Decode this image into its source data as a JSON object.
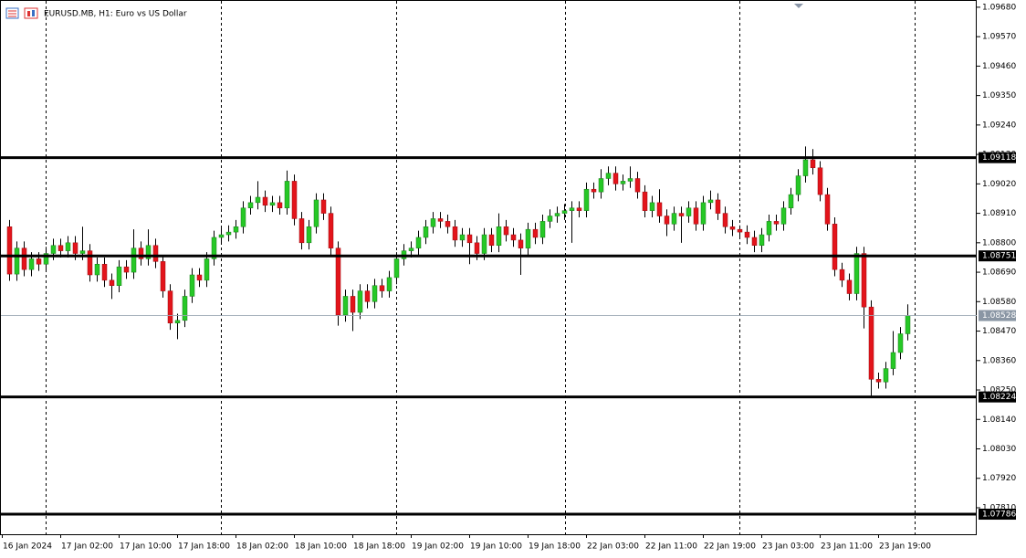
{
  "chart_data": {
    "type": "candlestick",
    "title": "EURUSD.MB, H1:  Euro vs US Dollar",
    "up_color": "#26c826",
    "down_color": "#e3141b",
    "ylim": [
      1.07711,
      1.09707
    ],
    "yticks": [
      {
        "value": 1.0968,
        "label": "1.09680"
      },
      {
        "value": 1.0957,
        "label": "1.09570"
      },
      {
        "value": 1.0946,
        "label": "1.09460"
      },
      {
        "value": 1.0935,
        "label": "1.09350"
      },
      {
        "value": 1.0924,
        "label": "1.09240"
      },
      {
        "value": 1.0913,
        "label": "1.09130"
      },
      {
        "value": 1.0902,
        "label": "1.09020"
      },
      {
        "value": 1.0891,
        "label": "1.08910"
      },
      {
        "value": 1.088,
        "label": "1.08800"
      },
      {
        "value": 1.0869,
        "label": "1.08690"
      },
      {
        "value": 1.0858,
        "label": "1.08580"
      },
      {
        "value": 1.0847,
        "label": "1.08470"
      },
      {
        "value": 1.0836,
        "label": "1.08360"
      },
      {
        "value": 1.0825,
        "label": "1.08250"
      },
      {
        "value": 1.0814,
        "label": "1.08140"
      },
      {
        "value": 1.0803,
        "label": "1.08030"
      },
      {
        "value": 1.0792,
        "label": "1.07920"
      },
      {
        "value": 1.0781,
        "label": "1.07810"
      }
    ],
    "x_labels": [
      "16 Jan 2024",
      "17 Jan 02:00",
      "17 Jan 10:00",
      "17 Jan 18:00",
      "18 Jan 02:00",
      "18 Jan 10:00",
      "18 Jan 18:00",
      "19 Jan 02:00",
      "19 Jan 10:00",
      "19 Jan 18:00",
      "22 Jan 03:00",
      "22 Jan 11:00",
      "22 Jan 19:00",
      "23 Jan 03:00",
      "23 Jan 11:00",
      "23 Jan 19:00"
    ],
    "levels": [
      1.09118,
      1.08751,
      1.08224,
      1.07786
    ],
    "current_price": 1.08528,
    "open": [
      1.0886,
      1.08683,
      1.0878,
      1.087,
      1.0874,
      1.0872,
      1.0876,
      1.0879,
      1.0877,
      1.088,
      1.0876,
      1.0877,
      1.0868,
      1.0872,
      1.0866,
      1.0864,
      1.0871,
      1.0869,
      1.0878,
      1.0874,
      1.0879,
      1.0873,
      1.0862,
      1.085,
      1.0851,
      1.086,
      1.0868,
      1.0866,
      1.0874,
      1.0882,
      1.0883,
      1.0884,
      1.0886,
      1.0893,
      1.0895,
      1.0897,
      1.0894,
      1.0895,
      1.0893,
      1.0903,
      1.0889,
      1.088,
      1.0886,
      1.0896,
      1.0891,
      1.0878,
      1.0853,
      1.086,
      1.0854,
      1.0862,
      1.0858,
      1.0864,
      1.0862,
      1.0867,
      1.0874,
      1.0877,
      1.0878,
      1.0882,
      1.0886,
      1.0889,
      1.0888,
      1.0886,
      1.0881,
      1.0883,
      1.088,
      1.0876,
      1.0883,
      1.0879,
      1.0886,
      1.0883,
      1.0881,
      1.0878,
      1.0885,
      1.0882,
      1.0888,
      1.089,
      1.0891,
      1.0892,
      1.0893,
      1.0892,
      1.09,
      1.0899,
      1.0904,
      1.0906,
      1.0902,
      1.0903,
      1.0904,
      1.0899,
      1.0892,
      1.0895,
      1.089,
      1.0887,
      1.0891,
      1.089,
      1.0893,
      1.0887,
      1.0895,
      1.0896,
      1.0891,
      1.0886,
      1.0885,
      1.0884,
      1.0882,
      1.0879,
      1.0883,
      1.0888,
      1.0887,
      1.0893,
      1.0898,
      1.0905,
      1.0911,
      1.0908,
      1.0898,
      1.0887,
      1.087,
      1.0866,
      1.0861,
      1.0876,
      1.0856,
      1.0829,
      1.0828,
      1.0833,
      1.0839,
      1.0846
    ],
    "high": [
      1.08885,
      1.08805,
      1.08805,
      1.08765,
      1.08765,
      1.08785,
      1.08815,
      1.08815,
      1.08825,
      1.08825,
      1.0886,
      1.08795,
      1.08745,
      1.08745,
      1.08685,
      1.08735,
      1.08735,
      1.0885,
      1.08805,
      1.0885,
      1.08815,
      1.08755,
      1.08645,
      1.08535,
      1.08625,
      1.08705,
      1.08705,
      1.08765,
      1.08845,
      1.08855,
      1.08865,
      1.08885,
      1.08955,
      1.08975,
      1.0903,
      1.08995,
      1.08975,
      1.08975,
      1.0907,
      1.09055,
      1.08915,
      1.08885,
      1.08985,
      1.08985,
      1.08935,
      1.08805,
      1.08625,
      1.08625,
      1.08645,
      1.08645,
      1.08665,
      1.08665,
      1.08695,
      1.08765,
      1.08795,
      1.08805,
      1.08845,
      1.08885,
      1.08915,
      1.08915,
      1.08905,
      1.08885,
      1.08855,
      1.08855,
      1.08825,
      1.08855,
      1.08855,
      1.0891,
      1.08885,
      1.08855,
      1.08835,
      1.08875,
      1.08875,
      1.08905,
      1.08925,
      1.08935,
      1.08945,
      1.08955,
      1.08955,
      1.09025,
      1.09025,
      1.09075,
      1.09085,
      1.09085,
      1.09055,
      1.09085,
      1.09065,
      1.09015,
      1.08975,
      1.09,
      1.08925,
      1.08935,
      1.08935,
      1.08955,
      1.08955,
      1.08975,
      1.08995,
      1.08985,
      1.08935,
      1.08885,
      1.08865,
      1.08865,
      1.08845,
      1.08855,
      1.08905,
      1.08905,
      1.08955,
      1.09005,
      1.09075,
      1.0916,
      1.0915,
      1.09105,
      1.09005,
      1.08895,
      1.08725,
      1.08685,
      1.08785,
      1.08785,
      1.08585,
      1.08315,
      1.08355,
      1.0847,
      1.08485,
      1.0857
    ],
    "low": [
      1.08658,
      1.08658,
      1.08675,
      1.08675,
      1.08695,
      1.08695,
      1.08735,
      1.08745,
      1.08745,
      1.08735,
      1.08735,
      1.08655,
      1.08655,
      1.08635,
      1.0859,
      1.08615,
      1.08665,
      1.08665,
      1.08715,
      1.08715,
      1.08705,
      1.08595,
      1.08475,
      1.0844,
      1.08485,
      1.08575,
      1.08635,
      1.08635,
      1.08715,
      1.08795,
      1.08805,
      1.08815,
      1.08835,
      1.08905,
      1.08925,
      1.08915,
      1.08915,
      1.08905,
      1.08905,
      1.08865,
      1.08775,
      1.08775,
      1.08835,
      1.08885,
      1.08755,
      1.0849,
      1.08505,
      1.0847,
      1.08515,
      1.08555,
      1.08555,
      1.08595,
      1.08595,
      1.08645,
      1.08715,
      1.08745,
      1.08755,
      1.08795,
      1.08835,
      1.08855,
      1.08835,
      1.08785,
      1.08785,
      1.0872,
      1.08735,
      1.08735,
      1.08765,
      1.08765,
      1.08805,
      1.08785,
      1.0868,
      1.08755,
      1.08795,
      1.08795,
      1.08855,
      1.08875,
      1.08885,
      1.088,
      1.08895,
      1.08895,
      1.08965,
      1.08965,
      1.09015,
      1.08995,
      1.08995,
      1.09005,
      1.08965,
      1.08895,
      1.08895,
      1.08875,
      1.08825,
      1.08845,
      1.088,
      1.08875,
      1.08845,
      1.08845,
      1.08925,
      1.08885,
      1.08835,
      1.08825,
      1.08815,
      1.08795,
      1.08765,
      1.08765,
      1.08805,
      1.08845,
      1.08845,
      1.08905,
      1.08955,
      1.09025,
      1.09055,
      1.08955,
      1.08845,
      1.08675,
      1.08635,
      1.08585,
      1.08585,
      1.0848,
      1.0822,
      1.08255,
      1.08255,
      1.08305,
      1.08365,
      1.08435
    ],
    "close": [
      1.08683,
      1.0878,
      1.087,
      1.0874,
      1.0872,
      1.0876,
      1.0879,
      1.0877,
      1.088,
      1.0876,
      1.0877,
      1.0868,
      1.0872,
      1.0866,
      1.0864,
      1.0871,
      1.0869,
      1.0878,
      1.0874,
      1.0879,
      1.0873,
      1.0862,
      1.085,
      1.0851,
      1.086,
      1.0868,
      1.0866,
      1.0874,
      1.0882,
      1.0883,
      1.0884,
      1.0886,
      1.0893,
      1.0895,
      1.0897,
      1.0894,
      1.0895,
      1.0893,
      1.0903,
      1.0889,
      1.088,
      1.0886,
      1.0896,
      1.0891,
      1.0878,
      1.0853,
      1.086,
      1.0854,
      1.0862,
      1.0858,
      1.0864,
      1.0862,
      1.0867,
      1.0874,
      1.0877,
      1.0878,
      1.0882,
      1.0886,
      1.0889,
      1.0888,
      1.0886,
      1.0881,
      1.0883,
      1.088,
      1.0876,
      1.0883,
      1.0879,
      1.0886,
      1.0883,
      1.0881,
      1.0878,
      1.0885,
      1.0882,
      1.0888,
      1.089,
      1.0891,
      1.0892,
      1.0893,
      1.0892,
      1.09,
      1.0899,
      1.0904,
      1.0906,
      1.0902,
      1.0903,
      1.0904,
      1.0899,
      1.0892,
      1.0895,
      1.089,
      1.0887,
      1.0891,
      1.089,
      1.0893,
      1.0887,
      1.0895,
      1.0896,
      1.0891,
      1.0886,
      1.0885,
      1.0884,
      1.0882,
      1.0879,
      1.0883,
      1.0888,
      1.0887,
      1.0893,
      1.0898,
      1.0905,
      1.0911,
      1.0908,
      1.0898,
      1.0887,
      1.087,
      1.0866,
      1.0861,
      1.0876,
      1.0856,
      1.0829,
      1.0828,
      1.0833,
      1.0839,
      1.0846,
      1.08528
    ]
  }
}
